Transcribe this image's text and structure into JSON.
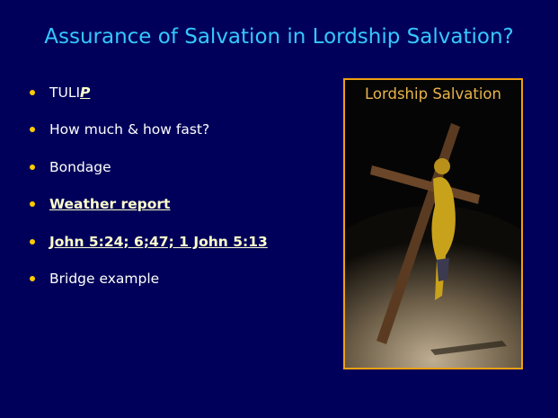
{
  "title": "Assurance of Salvation in Lordship Salvation?",
  "bullets": [
    {
      "parts": [
        "TULI",
        "P"
      ]
    },
    {
      "parts": [
        "How much & how fast?"
      ]
    },
    {
      "parts": [
        "Bondage"
      ]
    },
    {
      "parts": [
        "Weather report"
      ]
    },
    {
      "parts": [
        "John 5:24; 6;47; 1 John 5:13"
      ]
    },
    {
      "parts": [
        "Bridge example"
      ]
    }
  ],
  "image": {
    "caption": "Lordship Salvation"
  }
}
